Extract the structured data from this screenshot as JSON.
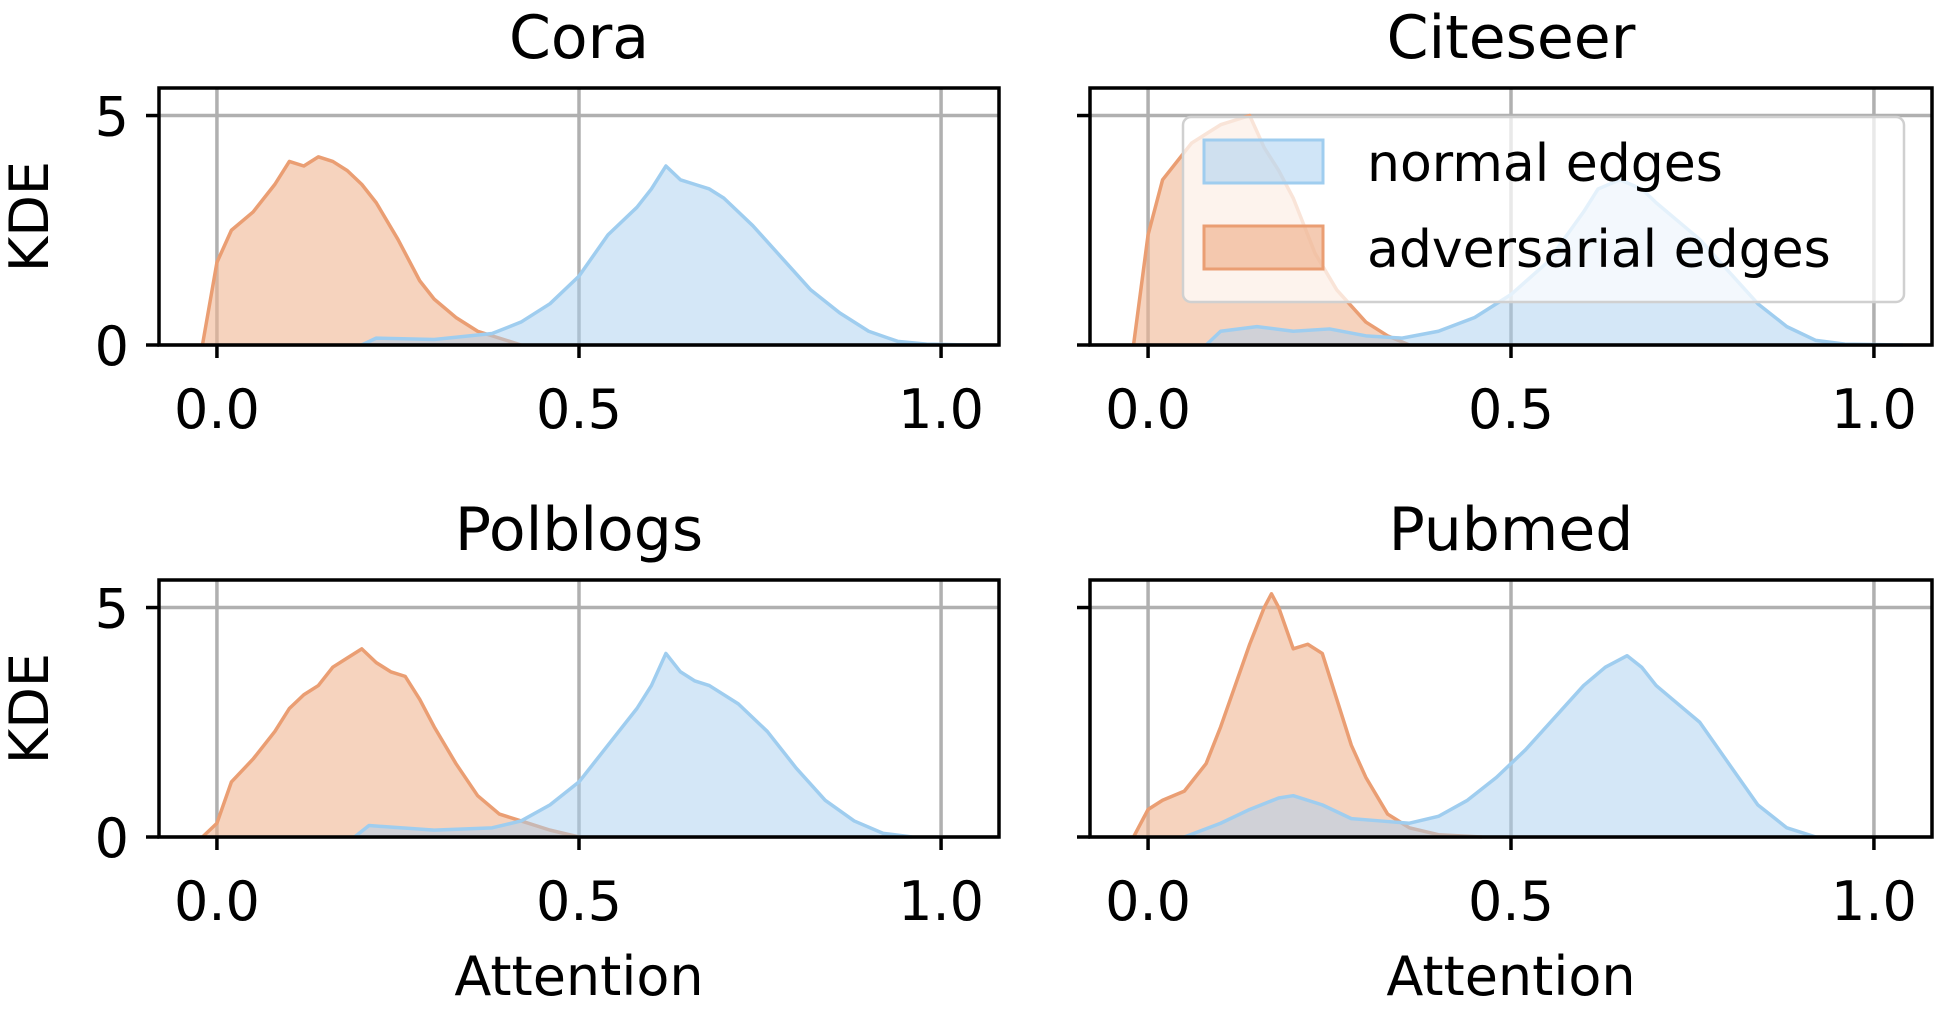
{
  "figure": {
    "ylabel": "KDE",
    "xlabel": "Attention",
    "legend": {
      "placement": "upper-right of top-right panel",
      "entries": [
        "normal edges",
        "adversarial edges"
      ]
    },
    "colors": {
      "normal": "#a9d0f0",
      "normal_line": "#9fcdef",
      "adversarial": "#f0b593",
      "adversarial_line": "#ea9e73",
      "grid": "#b0b0b0",
      "axis": "#000000"
    }
  },
  "chart_data": [
    {
      "type": "area",
      "title": "Cora",
      "xlim": [
        -0.08,
        1.08
      ],
      "ylim": [
        0,
        5.6
      ],
      "xticks": [
        "0.0",
        "0.5",
        "1.0"
      ],
      "yticks": [
        "0",
        "5"
      ],
      "grid": true,
      "show_xlabel": false,
      "show_ylabel": true,
      "series": [
        {
          "name": "adversarial edges",
          "x": [
            -0.02,
            0,
            0.02,
            0.05,
            0.08,
            0.1,
            0.12,
            0.14,
            0.16,
            0.18,
            0.2,
            0.22,
            0.25,
            0.28,
            0.3,
            0.33,
            0.36,
            0.39,
            0.42
          ],
          "y": [
            0,
            1.8,
            2.5,
            2.9,
            3.5,
            4.0,
            3.9,
            4.1,
            4.0,
            3.8,
            3.5,
            3.1,
            2.3,
            1.4,
            1.0,
            0.6,
            0.3,
            0.15,
            0
          ]
        },
        {
          "name": "normal edges",
          "x": [
            0.2,
            0.22,
            0.3,
            0.38,
            0.42,
            0.46,
            0.5,
            0.54,
            0.58,
            0.6,
            0.62,
            0.64,
            0.66,
            0.68,
            0.7,
            0.72,
            0.74,
            0.78,
            0.82,
            0.86,
            0.9,
            0.94,
            0.98,
            1.04
          ],
          "y": [
            0,
            0.15,
            0.12,
            0.25,
            0.5,
            0.9,
            1.5,
            2.4,
            3.0,
            3.4,
            3.9,
            3.6,
            3.5,
            3.4,
            3.2,
            2.9,
            2.6,
            1.9,
            1.2,
            0.7,
            0.3,
            0.08,
            0.02,
            0
          ]
        }
      ]
    },
    {
      "type": "area",
      "title": "Citeseer",
      "xlim": [
        -0.08,
        1.08
      ],
      "ylim": [
        0,
        5.6
      ],
      "xticks": [
        "0.0",
        "0.5",
        "1.0"
      ],
      "yticks": [
        "0",
        "5"
      ],
      "grid": true,
      "show_xlabel": false,
      "show_ylabel": false,
      "series": [
        {
          "name": "adversarial edges",
          "x": [
            -0.02,
            0,
            0.02,
            0.04,
            0.06,
            0.08,
            0.1,
            0.12,
            0.14,
            0.16,
            0.18,
            0.2,
            0.23,
            0.26,
            0.3,
            0.33,
            0.36
          ],
          "y": [
            0,
            2.4,
            3.6,
            4.0,
            4.4,
            4.6,
            4.8,
            4.9,
            5.0,
            4.3,
            3.8,
            3.2,
            2.0,
            1.2,
            0.5,
            0.2,
            0
          ]
        },
        {
          "name": "normal edges",
          "x": [
            0.08,
            0.1,
            0.15,
            0.2,
            0.25,
            0.3,
            0.35,
            0.4,
            0.45,
            0.5,
            0.55,
            0.6,
            0.62,
            0.65,
            0.68,
            0.7,
            0.73,
            0.76,
            0.8,
            0.84,
            0.88,
            0.92,
            0.96,
            1.04
          ],
          "y": [
            0,
            0.3,
            0.4,
            0.3,
            0.35,
            0.2,
            0.15,
            0.3,
            0.6,
            1.1,
            1.8,
            2.9,
            3.4,
            3.6,
            3.4,
            3.1,
            2.7,
            2.3,
            1.6,
            0.9,
            0.4,
            0.1,
            0.02,
            0
          ]
        }
      ]
    },
    {
      "type": "area",
      "title": "Polblogs",
      "xlim": [
        -0.08,
        1.08
      ],
      "ylim": [
        0,
        5.6
      ],
      "xticks": [
        "0.0",
        "0.5",
        "1.0"
      ],
      "yticks": [
        "0",
        "5"
      ],
      "grid": true,
      "show_xlabel": true,
      "show_ylabel": true,
      "series": [
        {
          "name": "adversarial edges",
          "x": [
            -0.02,
            0,
            0.02,
            0.05,
            0.08,
            0.1,
            0.12,
            0.14,
            0.16,
            0.18,
            0.2,
            0.22,
            0.24,
            0.26,
            0.28,
            0.3,
            0.33,
            0.36,
            0.39,
            0.42,
            0.46,
            0.5
          ],
          "y": [
            0,
            0.3,
            1.2,
            1.7,
            2.3,
            2.8,
            3.1,
            3.3,
            3.7,
            3.9,
            4.1,
            3.8,
            3.6,
            3.5,
            3.0,
            2.4,
            1.6,
            0.9,
            0.5,
            0.35,
            0.15,
            0
          ]
        },
        {
          "name": "normal edges",
          "x": [
            0.19,
            0.21,
            0.3,
            0.38,
            0.42,
            0.46,
            0.5,
            0.54,
            0.58,
            0.6,
            0.62,
            0.64,
            0.66,
            0.68,
            0.72,
            0.76,
            0.8,
            0.84,
            0.88,
            0.92,
            0.96
          ],
          "y": [
            0,
            0.25,
            0.15,
            0.2,
            0.35,
            0.7,
            1.2,
            2.0,
            2.8,
            3.3,
            4.0,
            3.6,
            3.4,
            3.3,
            2.9,
            2.3,
            1.5,
            0.8,
            0.35,
            0.08,
            0
          ]
        }
      ]
    },
    {
      "type": "area",
      "title": "Pubmed",
      "xlim": [
        -0.08,
        1.08
      ],
      "ylim": [
        0,
        5.6
      ],
      "xticks": [
        "0.0",
        "0.5",
        "1.0"
      ],
      "yticks": [
        "0",
        "5"
      ],
      "grid": true,
      "show_xlabel": true,
      "show_ylabel": false,
      "series": [
        {
          "name": "adversarial edges",
          "x": [
            -0.02,
            0,
            0.02,
            0.05,
            0.08,
            0.1,
            0.12,
            0.14,
            0.16,
            0.17,
            0.18,
            0.2,
            0.22,
            0.24,
            0.26,
            0.28,
            0.3,
            0.33,
            0.36,
            0.4,
            0.46
          ],
          "y": [
            0,
            0.6,
            0.8,
            1.0,
            1.6,
            2.4,
            3.3,
            4.2,
            5.0,
            5.3,
            5.0,
            4.1,
            4.2,
            4.0,
            3.0,
            2.0,
            1.3,
            0.5,
            0.2,
            0.05,
            0
          ]
        },
        {
          "name": "normal edges",
          "x": [
            0.05,
            0.1,
            0.14,
            0.18,
            0.2,
            0.24,
            0.28,
            0.32,
            0.36,
            0.4,
            0.44,
            0.48,
            0.52,
            0.56,
            0.6,
            0.63,
            0.66,
            0.68,
            0.7,
            0.73,
            0.76,
            0.8,
            0.84,
            0.88,
            0.92
          ],
          "y": [
            0,
            0.3,
            0.6,
            0.85,
            0.9,
            0.7,
            0.4,
            0.35,
            0.3,
            0.45,
            0.8,
            1.3,
            1.9,
            2.6,
            3.3,
            3.7,
            3.95,
            3.7,
            3.3,
            2.9,
            2.5,
            1.6,
            0.7,
            0.2,
            0
          ]
        }
      ]
    }
  ]
}
